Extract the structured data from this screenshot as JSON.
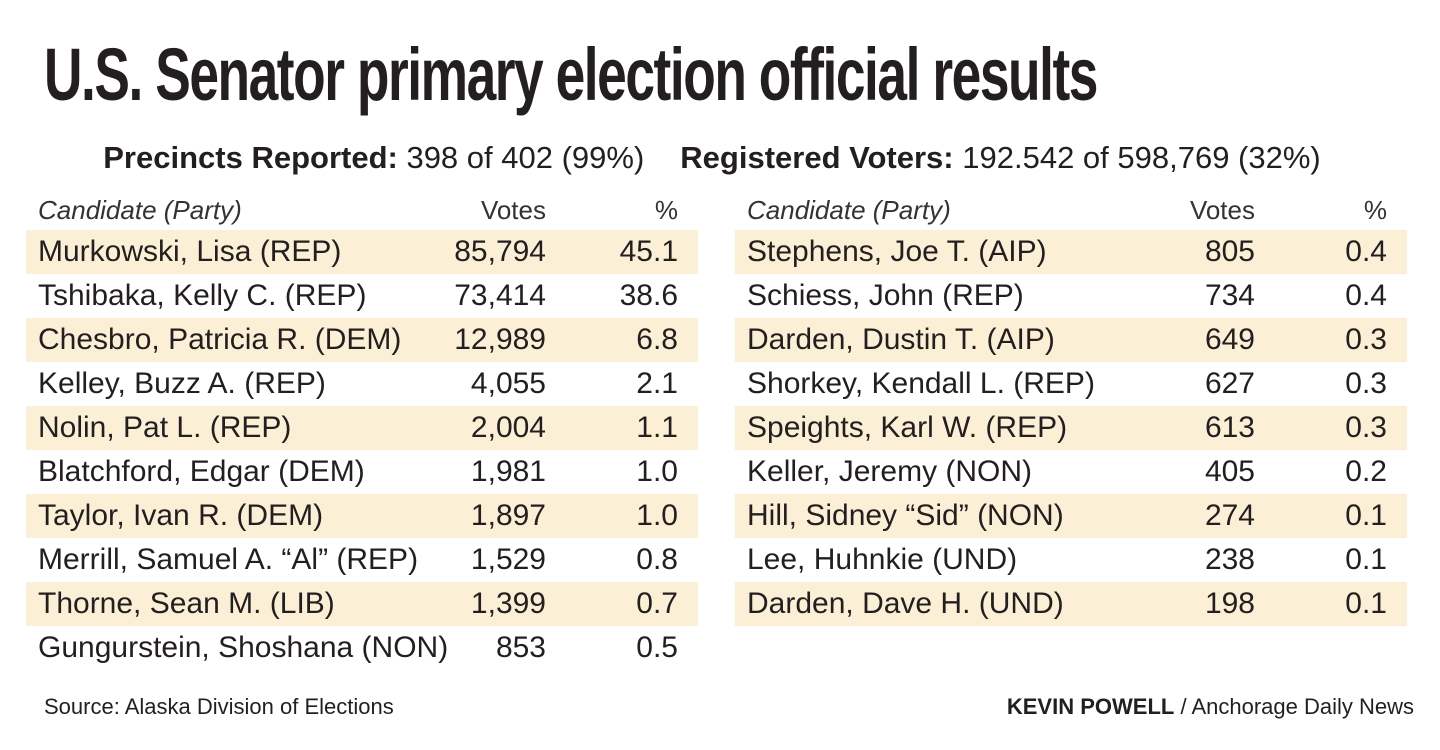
{
  "title": "U.S. Senator primary election official results",
  "stats": {
    "precincts_label": "Precincts Reported:",
    "precincts_value": "398 of 402 (99%)",
    "voters_label": "Registered Voters:",
    "voters_value": "192.542 of 598,769 (32%)"
  },
  "headers": {
    "candidate": "Candidate (Party)",
    "votes": "Votes",
    "pct": "%"
  },
  "chart_data": {
    "type": "table",
    "title": "U.S. Senator primary election official results",
    "columns": [
      "Candidate (Party)",
      "Votes",
      "%"
    ],
    "rows_left": [
      {
        "candidate": "Murkowski, Lisa (REP)",
        "votes": "85,794",
        "pct": "45.1"
      },
      {
        "candidate": "Tshibaka, Kelly C. (REP)",
        "votes": "73,414",
        "pct": "38.6"
      },
      {
        "candidate": "Chesbro, Patricia R. (DEM)",
        "votes": "12,989",
        "pct": "6.8"
      },
      {
        "candidate": "Kelley, Buzz A. (REP)",
        "votes": "4,055",
        "pct": "2.1"
      },
      {
        "candidate": "Nolin, Pat L. (REP)",
        "votes": "2,004",
        "pct": "1.1"
      },
      {
        "candidate": "Blatchford, Edgar (DEM)",
        "votes": "1,981",
        "pct": "1.0"
      },
      {
        "candidate": "Taylor, Ivan R. (DEM)",
        "votes": "1,897",
        "pct": "1.0"
      },
      {
        "candidate": "Merrill, Samuel A. “Al” (REP)",
        "votes": "1,529",
        "pct": "0.8"
      },
      {
        "candidate": "Thorne, Sean M. (LIB)",
        "votes": "1,399",
        "pct": "0.7"
      },
      {
        "candidate": "Gungurstein, Shoshana (NON)",
        "votes": "853",
        "pct": "0.5"
      }
    ],
    "rows_right": [
      {
        "candidate": "Stephens, Joe T. (AIP)",
        "votes": "805",
        "pct": "0.4"
      },
      {
        "candidate": "Schiess, John (REP)",
        "votes": "734",
        "pct": "0.4"
      },
      {
        "candidate": "Darden, Dustin T. (AIP)",
        "votes": "649",
        "pct": "0.3"
      },
      {
        "candidate": "Shorkey, Kendall L. (REP)",
        "votes": "627",
        "pct": "0.3"
      },
      {
        "candidate": "Speights, Karl W. (REP)",
        "votes": "613",
        "pct": "0.3"
      },
      {
        "candidate": "Keller, Jeremy (NON)",
        "votes": "405",
        "pct": "0.2"
      },
      {
        "candidate": "Hill, Sidney “Sid” (NON)",
        "votes": "274",
        "pct": "0.1"
      },
      {
        "candidate": "Lee, Huhnkie (UND)",
        "votes": "238",
        "pct": "0.1"
      },
      {
        "candidate": "Darden, Dave H. (UND)",
        "votes": "198",
        "pct": "0.1"
      }
    ]
  },
  "colors": {
    "row_shade": "#fbf0d6",
    "text": "#231f20"
  },
  "footer": {
    "source": "Source: Alaska Division of Elections",
    "author": "KEVIN POWELL",
    "separator": " / ",
    "publication": "Anchorage Daily News"
  }
}
